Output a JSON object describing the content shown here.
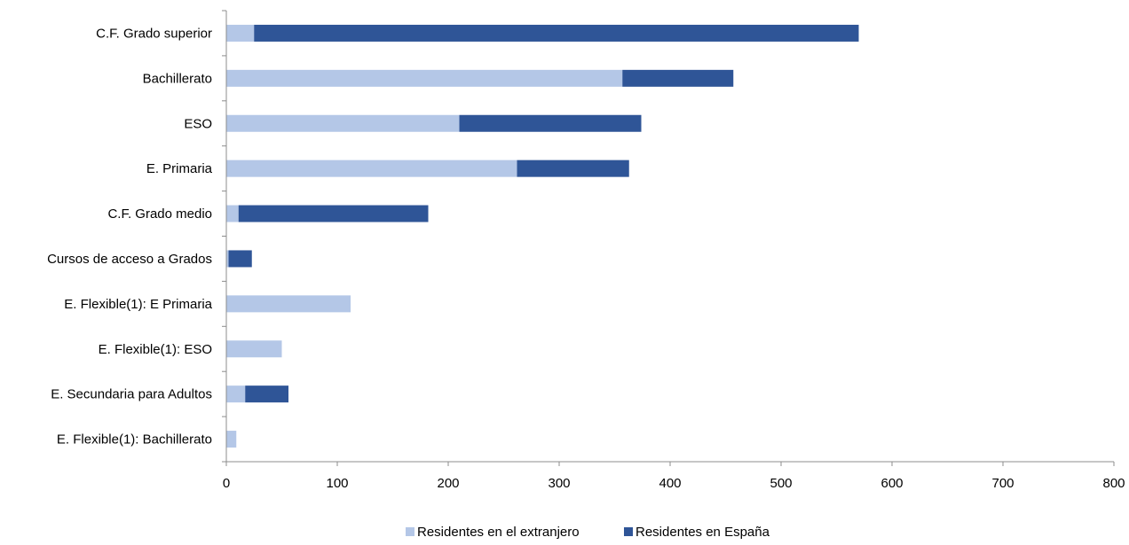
{
  "chart_data": {
    "type": "bar",
    "orientation": "horizontal",
    "stacked": true,
    "title": "",
    "xlabel": "",
    "ylabel": "",
    "xlim": [
      0,
      800
    ],
    "xticks": [
      "0",
      "100",
      "200",
      "300",
      "400",
      "500",
      "600",
      "700",
      "800"
    ],
    "grid": false,
    "legend_position": "bottom",
    "categories": [
      "C.F. Grado superior",
      "Bachillerato",
      "ESO",
      "E. Primaria",
      "C.F. Grado medio",
      "Cursos de acceso a Grados",
      "E. Flexible(1): E Primaria",
      "E. Flexible(1): ESO",
      "E. Secundaria para Adultos",
      "E. Flexible(1): Bachillerato"
    ],
    "series": [
      {
        "name": "Residentes en el extranjero",
        "color": "#b4c7e7",
        "values": [
          25,
          357,
          210,
          262,
          11,
          2,
          112,
          50,
          17,
          9
        ]
      },
      {
        "name": "Residentes en España",
        "color": "#2f5597",
        "values": [
          545,
          100,
          164,
          101,
          171,
          21,
          0,
          0,
          39,
          0
        ]
      }
    ]
  }
}
